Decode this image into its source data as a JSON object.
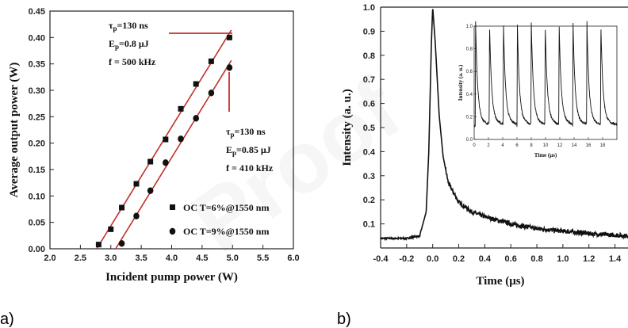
{
  "chart_data": [
    {
      "type": "scatter",
      "panel_label": "a)",
      "xlabel": "Incident pump power (W)",
      "ylabel": "Average output power (W)",
      "xlim": [
        2.0,
        6.0
      ],
      "ylim": [
        0.0,
        0.45
      ],
      "xticks": [
        "2.0",
        "2.5",
        "3.0",
        "3.5",
        "4.0",
        "4.5",
        "5.0",
        "5.5",
        "6.0"
      ],
      "yticks": [
        "0.00",
        "0.05",
        "0.10",
        "0.15",
        "0.20",
        "0.25",
        "0.30",
        "0.35",
        "0.40",
        "0.45"
      ],
      "series": [
        {
          "name": "OC T=6%@1550 nm",
          "marker": "square",
          "color": "#111111",
          "x": [
            2.8,
            3.0,
            3.18,
            3.42,
            3.65,
            3.9,
            4.15,
            4.4,
            4.65,
            4.95
          ],
          "y": [
            0.008,
            0.037,
            0.078,
            0.123,
            0.165,
            0.207,
            0.265,
            0.312,
            0.355,
            0.4
          ]
        },
        {
          "name": "OC T=9%@1550 nm",
          "marker": "circle",
          "color": "#111111",
          "x": [
            3.18,
            3.42,
            3.65,
            3.9,
            4.15,
            4.4,
            4.65,
            4.95
          ],
          "y": [
            0.01,
            0.062,
            0.11,
            0.163,
            0.208,
            0.247,
            0.295,
            0.343
          ]
        }
      ],
      "fit_line_color": "#c0302a",
      "annotations": [
        {
          "line1_sym": "τ",
          "line1_sub": "p",
          "line1_rest": "=130 ns",
          "line2_sym": "E",
          "line2_sub": "p",
          "line2_rest": "=0.8 μJ",
          "line3": "f = 500 kHz"
        },
        {
          "line1_sym": "τ",
          "line1_sub": "p",
          "line1_rest": "=130 ns",
          "line2_sym": "E",
          "line2_sub": "p",
          "line2_rest": "=0.85 μJ",
          "line3": "f = 410 kHz"
        }
      ]
    },
    {
      "type": "line",
      "panel_label": "b)",
      "xlabel": "Time (μs)",
      "ylabel": "Intensity (a. u.)",
      "xlim": [
        -0.4,
        1.5
      ],
      "ylim": [
        0.0,
        1.0
      ],
      "xticks": [
        "-0.4",
        "-0.2",
        "0.0",
        "0.2",
        "0.4",
        "0.6",
        "0.8",
        "1.0",
        "1.2",
        "1.4"
      ],
      "yticks": [
        "0.1",
        "0.2",
        "0.3",
        "0.4",
        "0.5",
        "0.6",
        "0.7",
        "0.8",
        "0.9",
        "1.0"
      ],
      "series": [
        {
          "name": "",
          "x": [
            -0.4,
            -0.3,
            -0.2,
            -0.1,
            -0.05,
            -0.03,
            -0.01,
            0.0,
            0.02,
            0.05,
            0.08,
            0.12,
            0.2,
            0.3,
            0.4,
            0.6,
            0.8,
            1.0,
            1.2,
            1.5
          ],
          "y": [
            0.04,
            0.04,
            0.04,
            0.05,
            0.15,
            0.4,
            0.85,
            1.0,
            0.85,
            0.55,
            0.38,
            0.27,
            0.19,
            0.15,
            0.13,
            0.1,
            0.08,
            0.07,
            0.06,
            0.05
          ]
        }
      ],
      "inset": {
        "xlabel": "Time (μs)",
        "ylabel": "Intensity (a. u.)",
        "xlim": [
          0,
          20
        ],
        "ylim": [
          0.0,
          1.0
        ],
        "xticks": [
          "0",
          "2",
          "4",
          "6",
          "8",
          "10",
          "12",
          "14",
          "16",
          "18"
        ],
        "yticks": [
          "0.0",
          "0.2",
          "0.4",
          "0.6",
          "0.8",
          "1.0"
        ],
        "pulse_times": [
          0.2,
          2.15,
          4.1,
          6.05,
          8.0,
          9.95,
          11.9,
          13.85,
          15.8,
          17.75
        ],
        "pulse_peak": 0.96,
        "baseline": 0.12
      }
    }
  ],
  "watermark_text": "Proof"
}
